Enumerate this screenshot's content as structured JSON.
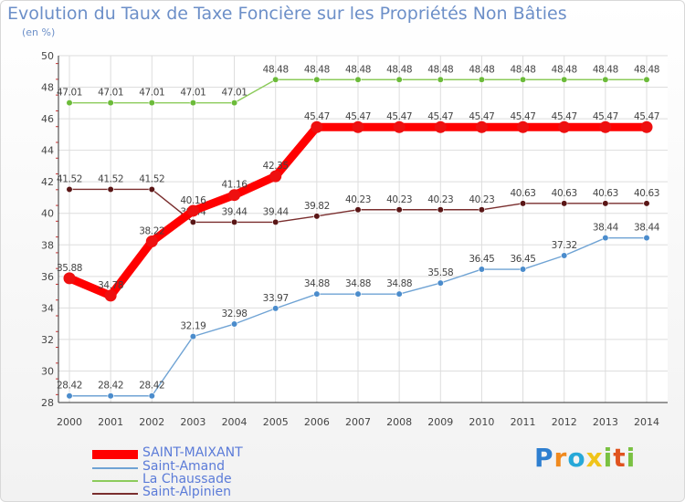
{
  "title": "Evolution du Taux de Taxe Foncière sur les Propriétés Non Bâties",
  "subtitle": "(en %)",
  "logo": {
    "text": "Proxiti",
    "letters": [
      "P",
      "r",
      "o",
      "x",
      "i",
      "t",
      "i"
    ]
  },
  "chart_data": {
    "type": "line",
    "x": [
      "2000",
      "2001",
      "2002",
      "2003",
      "2004",
      "2005",
      "2006",
      "2007",
      "2008",
      "2009",
      "2010",
      "2011",
      "2012",
      "2013",
      "2014"
    ],
    "ylim": [
      28,
      50
    ],
    "yticks": [
      28,
      30,
      32,
      34,
      36,
      38,
      40,
      42,
      44,
      46,
      48,
      50
    ],
    "grid": true,
    "series": [
      {
        "name": "La Chaussade",
        "color": "#8ccb5b",
        "marker": "#6cbb3a",
        "values": [
          47.01,
          47.01,
          47.01,
          47.01,
          47.01,
          48.48,
          48.48,
          48.48,
          48.48,
          48.48,
          48.48,
          48.48,
          48.48,
          48.48,
          48.48
        ],
        "labels": [
          "47.01",
          "47.01",
          "47.01",
          "47.01",
          "47.01",
          "48.48",
          "48.48",
          "48.48",
          "48.48",
          "48.48",
          "48.48",
          "48.48",
          "48.48",
          "48.48",
          "48.48"
        ]
      },
      {
        "name": "Saint-Alpinien",
        "color": "#7a2e2e",
        "marker": "#5a1616",
        "values": [
          41.52,
          41.52,
          41.52,
          39.44,
          39.44,
          39.44,
          39.82,
          40.23,
          40.23,
          40.23,
          40.23,
          40.63,
          40.63,
          40.63,
          40.63
        ],
        "labels": [
          "41.52",
          "41.52",
          "41.52",
          "39.44",
          "39.44",
          "39.44",
          "39.82",
          "40.23",
          "40.23",
          "40.23",
          "40.23",
          "40.63",
          "40.63",
          "40.63",
          "40.63"
        ]
      },
      {
        "name": "Saint-Amand",
        "color": "#6fa3d4",
        "marker": "#4b8ccc",
        "values": [
          28.42,
          28.42,
          28.42,
          32.19,
          32.98,
          33.97,
          34.88,
          34.88,
          34.88,
          35.58,
          36.45,
          36.45,
          37.32,
          38.44,
          38.44
        ],
        "labels": [
          "28.42",
          "28.42",
          "28.42",
          "32.19",
          "32.98",
          "33.97",
          "34.88",
          "34.88",
          "34.88",
          "35.58",
          "36.45",
          "36.45",
          "37.32",
          "38.44",
          "38.44"
        ]
      },
      {
        "name": "SAINT-MAIXANT",
        "color": "#ff0000",
        "marker": "#ee1010",
        "values": [
          35.88,
          34.78,
          38.22,
          40.16,
          41.16,
          42.35,
          45.47,
          45.47,
          45.47,
          45.47,
          45.47,
          45.47,
          45.47,
          45.47,
          45.47
        ],
        "labels": [
          "35.88",
          "34.78",
          "38.22",
          "40.16",
          "41.16",
          "42.35",
          "45.47",
          "45.47",
          "45.47",
          "45.47",
          "45.47",
          "45.47",
          "45.47",
          "45.47",
          "45.47"
        ]
      }
    ],
    "legend": [
      "SAINT-MAIXANT",
      "Saint-Amand",
      "La Chaussade",
      "Saint-Alpinien"
    ]
  }
}
